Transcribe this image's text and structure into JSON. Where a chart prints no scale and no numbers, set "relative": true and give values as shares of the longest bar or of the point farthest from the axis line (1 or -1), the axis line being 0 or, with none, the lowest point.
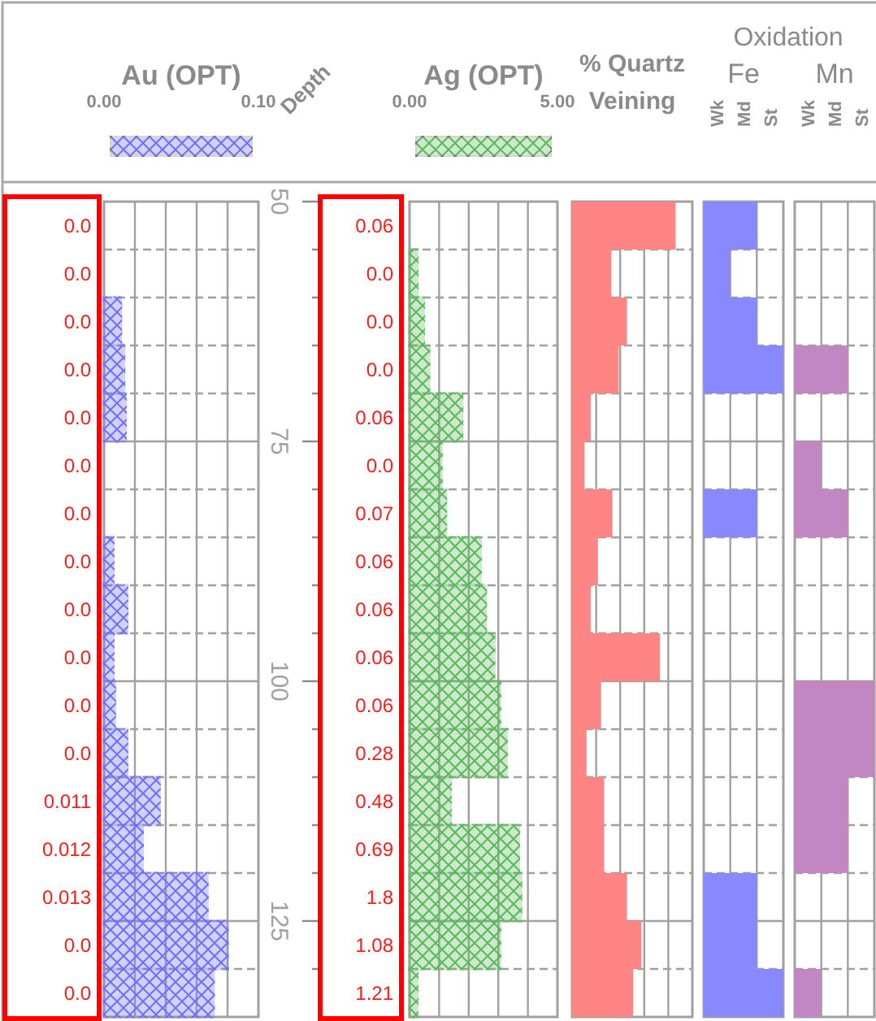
{
  "chart_data": [
    {
      "type": "other",
      "annotations": [
        "0.0",
        "0.0",
        "0.0",
        "0.0",
        "0.0",
        "0.0",
        "0.0",
        "0.0",
        "0.0",
        "0.0",
        "0.0",
        "0.0",
        "0.011",
        "0.012",
        "0.013",
        "0.0",
        "0.0"
      ]
    },
    {
      "type": "bar",
      "orientation": "horizontal",
      "title": "Au (OPT)",
      "ylabel": "Depth",
      "x": [
        52.5,
        57.5,
        62.5,
        67.5,
        72.5,
        77.5,
        82.5,
        87.5,
        92.5,
        97.5,
        102.5,
        107.5,
        112.5,
        117.5,
        122.5,
        127.5,
        132.5
      ],
      "values": [
        0,
        0,
        0.011,
        0.013,
        0.014,
        0,
        0,
        0.006,
        0.015,
        0.006,
        0.007,
        0.015,
        0.036,
        0.025,
        0.067,
        0.08,
        0.071
      ],
      "color": "#7070ff",
      "xlim": [
        0,
        0.1
      ],
      "xticks": [
        {
          "value": 0,
          "label": "0.00"
        },
        {
          "value": 0.02,
          "label": null
        },
        {
          "value": 0.04,
          "label": null
        },
        {
          "value": 0.06,
          "label": null
        },
        {
          "value": 0.08,
          "label": null
        },
        {
          "value": 0.1,
          "label": "0.10"
        }
      ],
      "grid": true,
      "ylim": [
        135,
        50
      ],
      "yticks": [
        50,
        {
          "value": 55,
          "label": null
        },
        {
          "value": 60,
          "label": null
        },
        {
          "value": 65,
          "label": null
        },
        {
          "value": 70,
          "label": null
        },
        75,
        {
          "value": 80,
          "label": null
        },
        {
          "value": 85,
          "label": null
        },
        {
          "value": 90,
          "label": null
        },
        {
          "value": 95,
          "label": null
        },
        100,
        {
          "value": 105,
          "label": null
        },
        {
          "value": 110,
          "label": null
        },
        {
          "value": 115,
          "label": null
        },
        {
          "value": 120,
          "label": null
        },
        125,
        {
          "value": 130,
          "label": null
        }
      ]
    },
    {
      "type": "other",
      "annotations": [
        "0.06",
        "0.0",
        "0.0",
        "0.0",
        "0.06",
        "0.0",
        "0.07",
        "0.06",
        "0.06",
        "0.06",
        "0.06",
        "0.28",
        "0.48",
        "0.69",
        "1.8",
        "1.08",
        "1.21"
      ]
    },
    {
      "type": "bar",
      "orientation": "horizontal",
      "title": "Ag (OPT)",
      "tick_labels": "x",
      "x": [
        52.5,
        57.5,
        62.5,
        67.5,
        72.5,
        77.5,
        82.5,
        87.5,
        92.5,
        97.5,
        102.5,
        107.5,
        112.5,
        117.5,
        122.5,
        127.5,
        132.5
      ],
      "values": [
        0,
        0.26,
        0.48,
        0.66,
        1.78,
        1.08,
        1.23,
        2.4,
        2.58,
        2.86,
        3.06,
        3.28,
        1.39,
        3.7,
        3.77,
        3.06,
        0.26
      ],
      "color": "#5cb85c",
      "xlim": [
        0,
        5
      ],
      "xticks": [
        {
          "value": 0,
          "label": "0.00"
        },
        {
          "value": 1,
          "label": null
        },
        {
          "value": 2,
          "label": null
        },
        {
          "value": 3,
          "label": null
        },
        {
          "value": 4,
          "label": null
        },
        {
          "value": 5,
          "label": "5.00"
        }
      ],
      "grid": true,
      "ylim": [
        135,
        50
      ],
      "yticks": [
        50,
        55,
        60,
        65,
        70,
        75,
        80,
        85,
        90,
        95,
        100,
        105,
        110,
        115,
        120,
        125,
        130
      ]
    },
    {
      "type": "bar",
      "orientation": "horizontal",
      "title": "% Quartz Veining",
      "relative": true,
      "grid": true,
      "tick_labels": false,
      "x": [
        52.5,
        57.5,
        62.5,
        67.5,
        72.5,
        77.5,
        82.5,
        87.5,
        92.5,
        97.5,
        102.5,
        107.5,
        112.5,
        117.5,
        122.5,
        127.5,
        132.5
      ],
      "ylim": [
        135,
        50
      ],
      "yticks": [
        50,
        55,
        60,
        65,
        70,
        75,
        80,
        85,
        90,
        95,
        100,
        105,
        110,
        115,
        120,
        125,
        130
      ],
      "values": [
        1,
        0.38,
        0.53,
        0.45,
        0.18,
        0.12,
        0.39,
        0.25,
        0.18,
        0.85,
        0.28,
        0.14,
        0.31,
        0.31,
        0.53,
        0.67,
        0.59
      ],
      "color": "#ff8585"
    },
    {
      "type": "bar",
      "orientation": "horizontal",
      "subtitle": "Oxidation",
      "title": "Fe",
      "annotations": [
        "Wk",
        "Md",
        "St"
      ],
      "relative": true,
      "grid": true,
      "tick_labels": false,
      "x": [
        52.5,
        57.5,
        62.5,
        67.5,
        72.5,
        77.5,
        82.5,
        87.5,
        92.5,
        97.5,
        102.5,
        107.5,
        112.5,
        117.5,
        122.5,
        127.5,
        132.5
      ],
      "ylim": [
        135,
        50
      ],
      "yticks": [
        50,
        55,
        60,
        65,
        70,
        75,
        80,
        85,
        90,
        95,
        100,
        105,
        110,
        115,
        120,
        125,
        130
      ],
      "values": [
        0.67,
        0.33,
        0.67,
        1,
        0,
        0,
        0.67,
        0,
        0,
        0,
        0,
        0,
        0,
        0,
        0.67,
        0.67,
        1
      ],
      "color": "#8888ff"
    },
    {
      "type": "bar",
      "orientation": "horizontal",
      "title": "Mn",
      "annotations": [
        "Wk",
        "Md",
        "St"
      ],
      "relative": true,
      "grid": true,
      "tick_labels": false,
      "x": [
        52.5,
        57.5,
        62.5,
        67.5,
        72.5,
        77.5,
        82.5,
        87.5,
        92.5,
        97.5,
        102.5,
        107.5,
        112.5,
        117.5,
        122.5,
        127.5,
        132.5
      ],
      "ylim": [
        135,
        50
      ],
      "yticks": [
        50,
        55,
        60,
        65,
        70,
        75,
        80,
        85,
        90,
        95,
        100,
        110,
        115,
        120,
        125,
        130
      ],
      "values": [
        0,
        0,
        0,
        0.67,
        0,
        0.33,
        0.67,
        0,
        0,
        0,
        1,
        1,
        0.67,
        0.67,
        0,
        0,
        0.33
      ],
      "color": "#c286c2"
    }
  ]
}
